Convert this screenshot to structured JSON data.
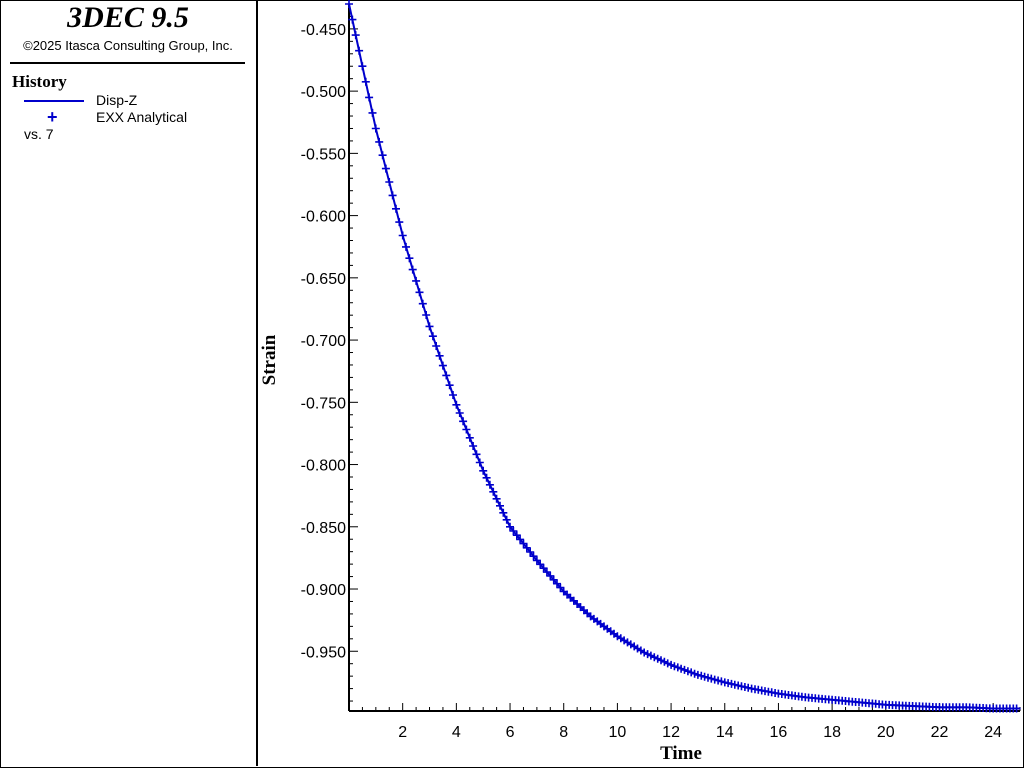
{
  "header": {
    "app_title": "3DEC 9.5",
    "copyright": "©2025 Itasca Consulting Group, Inc."
  },
  "legend": {
    "title": "History",
    "series1_label": "Disp-Z",
    "series2_label": "EXX Analytical",
    "vs_label": "vs. 7",
    "series2_marker": "+"
  },
  "colors": {
    "series": "#0000cc",
    "axis": "#000000"
  },
  "chart_data": {
    "type": "line",
    "xlabel": "Time",
    "ylabel": "Strain",
    "xlim": [
      0,
      25
    ],
    "ylim": [
      -0.998,
      -0.43
    ],
    "x_ticks": [
      2,
      4,
      6,
      8,
      10,
      12,
      14,
      16,
      18,
      20,
      22,
      24
    ],
    "y_ticks": [
      -0.45,
      -0.5,
      -0.55,
      -0.6,
      -0.65,
      -0.7,
      -0.75,
      -0.8,
      -0.85,
      -0.9,
      -0.95
    ],
    "y_tick_labels": [
      "-0.450",
      "-0.500",
      "-0.550",
      "-0.600",
      "-0.650",
      "-0.700",
      "-0.750",
      "-0.800",
      "-0.850",
      "-0.900",
      "-0.950"
    ],
    "grid": false,
    "series": [
      {
        "name": "Disp-Z",
        "style": "line",
        "x": [
          0,
          1,
          2,
          3,
          4,
          5,
          6,
          7,
          8,
          9,
          10,
          11,
          12,
          13,
          14,
          15,
          16,
          17,
          18,
          19,
          20,
          21,
          22,
          23,
          24,
          25
        ],
        "y": [
          -0.43,
          -0.53,
          -0.616,
          -0.689,
          -0.752,
          -0.805,
          -0.85,
          -0.877,
          -0.902,
          -0.922,
          -0.938,
          -0.951,
          -0.961,
          -0.969,
          -0.975,
          -0.98,
          -0.984,
          -0.987,
          -0.989,
          -0.991,
          -0.993,
          -0.994,
          -0.995,
          -0.995,
          -0.996,
          -0.996
        ]
      },
      {
        "name": "EXX Analytical",
        "style": "marker",
        "x": [
          0,
          1,
          2,
          3,
          4,
          5,
          6,
          7,
          8,
          9,
          10,
          11,
          12,
          13,
          14,
          15,
          16,
          17,
          18,
          19,
          20,
          21,
          22,
          23,
          24,
          25
        ],
        "y": [
          -0.43,
          -0.53,
          -0.616,
          -0.689,
          -0.752,
          -0.805,
          -0.85,
          -0.877,
          -0.902,
          -0.922,
          -0.938,
          -0.951,
          -0.961,
          -0.969,
          -0.975,
          -0.98,
          -0.984,
          -0.987,
          -0.989,
          -0.991,
          -0.993,
          -0.994,
          -0.995,
          -0.995,
          -0.996,
          -0.996
        ]
      }
    ]
  }
}
